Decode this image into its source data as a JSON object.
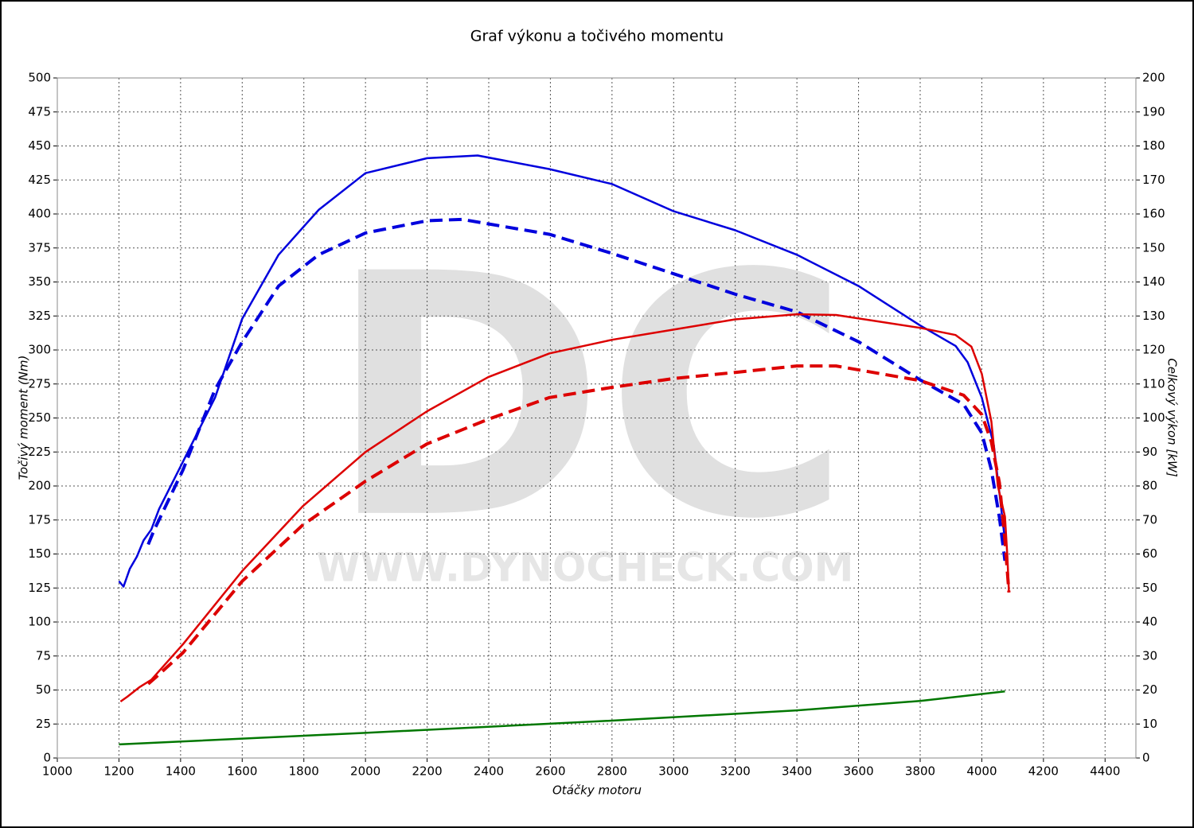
{
  "chart_data": {
    "type": "line",
    "title": "Graf výkonu a točivého momentu",
    "x_label": "Otáčky motoru",
    "y_label": "Točivý moment (Nm)",
    "y2_label": "Celkový výkon [kW]",
    "watermark": {
      "logo": "DC",
      "url": "WWW.DYNOCHECK.COM"
    },
    "xlim": [
      1000,
      4500
    ],
    "xticks": [
      1000,
      1200,
      1400,
      1600,
      1800,
      2000,
      2200,
      2400,
      2600,
      2800,
      3000,
      3200,
      3400,
      3600,
      3800,
      4000,
      4200,
      4400
    ],
    "ylim": [
      0,
      500
    ],
    "yticks": [
      0,
      25,
      50,
      75,
      100,
      125,
      150,
      175,
      200,
      225,
      250,
      275,
      300,
      325,
      350,
      375,
      400,
      425,
      450,
      475,
      500
    ],
    "y2lim": [
      0,
      200
    ],
    "y2ticks": [
      0,
      10,
      20,
      30,
      40,
      50,
      60,
      70,
      80,
      90,
      100,
      110,
      120,
      130,
      140,
      150,
      160,
      170,
      180,
      190,
      200
    ],
    "grid": true,
    "series": [
      {
        "color": "#0000dd",
        "dashed": false,
        "axis": "y",
        "x": [
          1200,
          1215,
          1235,
          1258,
          1280,
          1305,
          1330,
          1408,
          1512,
          1600,
          1718,
          1848,
          2000,
          2200,
          2364,
          2597,
          2800,
          3000,
          3200,
          3400,
          3600,
          3800,
          3915,
          3954,
          4000,
          4039,
          4057,
          4075
        ],
        "values": [
          130,
          126,
          139,
          148,
          160,
          168,
          183,
          218,
          265,
          323,
          370,
          403,
          430,
          441,
          443,
          433,
          422,
          402,
          388,
          370,
          347,
          318,
          303,
          291,
          265,
          230,
          195,
          160
        ]
      },
      {
        "color": "#0000dd",
        "dashed": true,
        "axis": "y",
        "x": [
          1295,
          1313,
          1408,
          1512,
          1600,
          1718,
          1848,
          2000,
          2200,
          2313,
          2597,
          2800,
          3000,
          3200,
          3400,
          3600,
          3800,
          3941,
          4000,
          4031,
          4057,
          4075
        ],
        "values": [
          157,
          167,
          212,
          271,
          306,
          347,
          370,
          386,
          395,
          396,
          385,
          371,
          356,
          341,
          328,
          306,
          278,
          260,
          239,
          212,
          177,
          145
        ]
      },
      {
        "color": "#dd0000",
        "dashed": false,
        "axis": "y2",
        "x": [
          1205,
          1227,
          1266,
          1305,
          1408,
          1600,
          1796,
          2000,
          2200,
          2398,
          2597,
          2800,
          3000,
          3200,
          3400,
          3527,
          3800,
          3915,
          3966,
          4000,
          4031,
          4052,
          4075,
          4083,
          4088
        ],
        "values": [
          16.6,
          18,
          20.8,
          23,
          33.5,
          55,
          74,
          90,
          102,
          112,
          119,
          123,
          126,
          129,
          130.5,
          130.3,
          126.5,
          124.4,
          121,
          113,
          99,
          80,
          71,
          59,
          48.7
        ]
      },
      {
        "color": "#dd0000",
        "dashed": true,
        "axis": "y2",
        "x": [
          1295,
          1318,
          1408,
          1600,
          1796,
          2000,
          2200,
          2398,
          2597,
          2800,
          3000,
          3200,
          3400,
          3527,
          3800,
          3941,
          4000,
          4031,
          4057,
          4075,
          4088
        ],
        "values": [
          21.8,
          23.6,
          31,
          52,
          68.5,
          81.4,
          92.4,
          99.6,
          106,
          109,
          111.6,
          113.4,
          115.3,
          115.3,
          111,
          106.7,
          101,
          93,
          81,
          64,
          48.7
        ]
      },
      {
        "color": "#007700",
        "dashed": false,
        "axis": "y2",
        "x": [
          1200,
          2000,
          2800,
          3400,
          3800,
          4075
        ],
        "values": [
          4,
          7.4,
          11,
          14,
          16.8,
          19.6
        ]
      }
    ]
  }
}
